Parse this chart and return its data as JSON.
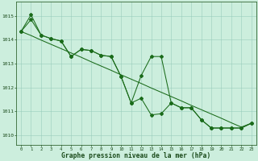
{
  "hours": [
    0,
    1,
    2,
    3,
    4,
    5,
    6,
    7,
    8,
    9,
    10,
    11,
    12,
    13,
    14,
    15,
    16,
    17,
    18,
    19,
    20,
    21,
    22,
    23
  ],
  "series_squiggly1": [
    1014.35,
    1015.05,
    1014.2,
    1014.05,
    1013.95,
    1013.3,
    1013.6,
    1013.55,
    1013.35,
    1013.3,
    1012.45,
    1011.35,
    1011.55,
    1010.85,
    1010.9,
    1011.35,
    1011.15,
    1011.15,
    1010.65,
    1010.3,
    1010.3,
    1010.3,
    1010.3,
    1010.5
  ],
  "series_squiggly2": [
    1014.35,
    1014.85,
    1014.2,
    1014.05,
    1013.95,
    1013.3,
    1013.6,
    1013.55,
    1013.35,
    1013.3,
    1012.45,
    1011.35,
    1012.5,
    1013.3,
    1013.3,
    1011.35,
    1011.15,
    1011.15,
    1010.65,
    1010.3,
    1010.3,
    1010.3,
    1010.3,
    1010.5
  ],
  "series_trend": [
    1014.35,
    1014.18,
    1013.99,
    1013.81,
    1013.63,
    1013.45,
    1013.27,
    1013.08,
    1012.9,
    1012.72,
    1012.53,
    1012.35,
    1012.17,
    1011.98,
    1011.8,
    1011.62,
    1011.44,
    1011.25,
    1011.07,
    1010.89,
    1010.71,
    1010.52,
    1010.34,
    1010.5
  ],
  "line_color": "#1a6b1a",
  "bg_color": "#cceedd",
  "grid_color": "#99ccbb",
  "xlabel": "Graphe pression niveau de la mer (hPa)",
  "ytick_labels": [
    "1010",
    "1011",
    "1012",
    "1013",
    "1014",
    "1015"
  ],
  "ytick_vals": [
    1010,
    1011,
    1012,
    1013,
    1014,
    1015
  ],
  "xtick_vals": [
    0,
    1,
    2,
    3,
    4,
    5,
    6,
    7,
    8,
    9,
    10,
    11,
    12,
    13,
    14,
    15,
    16,
    17,
    18,
    19,
    20,
    21,
    22,
    23
  ],
  "ylim": [
    1009.6,
    1015.6
  ],
  "xlim": [
    -0.5,
    23.5
  ]
}
